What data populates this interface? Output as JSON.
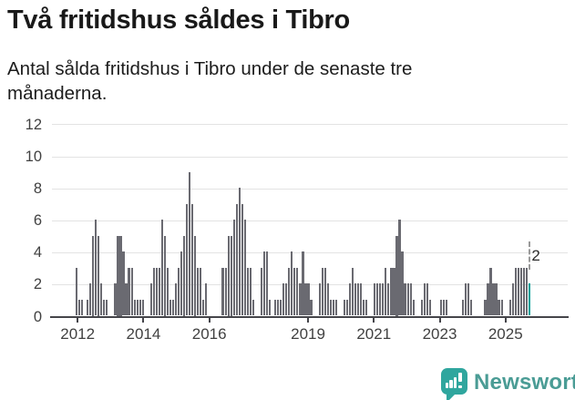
{
  "header": {
    "title": "Två fritidshus såldes i Tibro",
    "subtitle": "Antal sålda fritidshus i Tibro under de senaste tre månaderna."
  },
  "chart_data": {
    "type": "bar",
    "title": "Två fritidshus såldes i Tibro",
    "subtitle": "Antal sålda fritidshus i Tibro under de senaste tre månaderna.",
    "xlabel": "",
    "ylabel": "",
    "ylim": [
      0,
      12
    ],
    "y_ticks": [
      0,
      2,
      4,
      6,
      8,
      10,
      12
    ],
    "x_tick_years": [
      2012,
      2014,
      2016,
      2019,
      2021,
      2023,
      2025
    ],
    "grid": "horizontal",
    "legend": "none",
    "bar_color": "#6A6A71",
    "highlight_color": "#00A099",
    "months_start": "2012-01",
    "months_end": "2025-09",
    "values_by_year": {
      "2012": [
        3,
        1,
        1,
        0,
        1,
        2,
        5,
        6,
        5,
        2,
        1,
        1
      ],
      "2013": [
        0,
        0,
        2,
        5,
        5,
        4,
        2,
        3,
        3,
        1,
        1,
        1
      ],
      "2014": [
        1,
        0,
        0,
        2,
        3,
        3,
        3,
        6,
        5,
        3,
        1,
        1
      ],
      "2015": [
        2,
        3,
        4,
        5,
        7,
        9,
        7,
        5,
        3,
        3,
        1,
        2
      ],
      "2016": [
        0,
        0,
        0,
        0,
        0,
        3,
        3,
        5,
        5,
        6,
        7,
        8
      ],
      "2017": [
        7,
        6,
        3,
        3,
        1,
        0,
        0,
        3,
        4,
        4,
        1,
        0
      ],
      "2018": [
        1,
        1,
        1,
        2,
        2,
        3,
        4,
        3,
        3,
        2,
        4,
        2
      ],
      "2019": [
        2,
        1,
        0,
        0,
        2,
        3,
        3,
        2,
        1,
        1,
        1,
        0
      ],
      "2020": [
        0,
        1,
        1,
        2,
        3,
        2,
        2,
        2,
        1,
        1,
        0,
        0
      ],
      "2021": [
        2,
        2,
        2,
        2,
        3,
        2,
        3,
        3,
        5,
        6,
        4,
        2
      ],
      "2022": [
        2,
        2,
        1,
        0,
        0,
        1,
        2,
        2,
        1,
        0,
        0,
        0
      ],
      "2023": [
        1,
        1,
        1,
        0,
        0,
        0,
        0,
        0,
        1,
        2,
        2,
        1
      ],
      "2024": [
        0,
        0,
        0,
        0,
        1,
        2,
        3,
        2,
        2,
        1,
        1,
        0
      ],
      "2025": [
        0,
        1,
        2,
        3,
        3,
        3,
        3,
        3,
        2
      ]
    },
    "highlight_last": true,
    "annotation": {
      "text": "2",
      "value": 2
    }
  },
  "footer": {
    "brand": "Newsworthy",
    "icon": "newsworthy-bubble-barchart-icon",
    "icon_color": "#2FA69E",
    "text_color": "#4A9C95"
  }
}
